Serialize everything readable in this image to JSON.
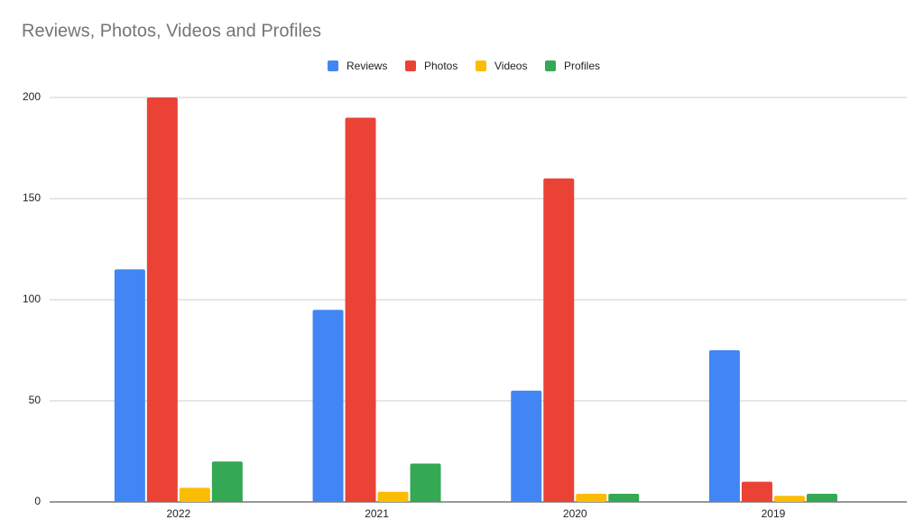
{
  "chart_data": {
    "type": "bar",
    "title": "Reviews, Photos, Videos and Profiles",
    "categories": [
      "2022",
      "2021",
      "2020",
      "2019"
    ],
    "series": [
      {
        "name": "Reviews",
        "color": "#4285f4",
        "values": [
          115,
          95,
          55,
          75
        ]
      },
      {
        "name": "Photos",
        "color": "#ea4335",
        "values": [
          200,
          190,
          160,
          10
        ]
      },
      {
        "name": "Videos",
        "color": "#fbbc04",
        "values": [
          7,
          5,
          4,
          3
        ]
      },
      {
        "name": "Profiles",
        "color": "#34a853",
        "values": [
          20,
          19,
          4,
          4
        ]
      }
    ],
    "ylim": [
      0,
      200
    ],
    "yticks": [
      0,
      50,
      100,
      150,
      200
    ],
    "grid": true,
    "legend": "top"
  }
}
